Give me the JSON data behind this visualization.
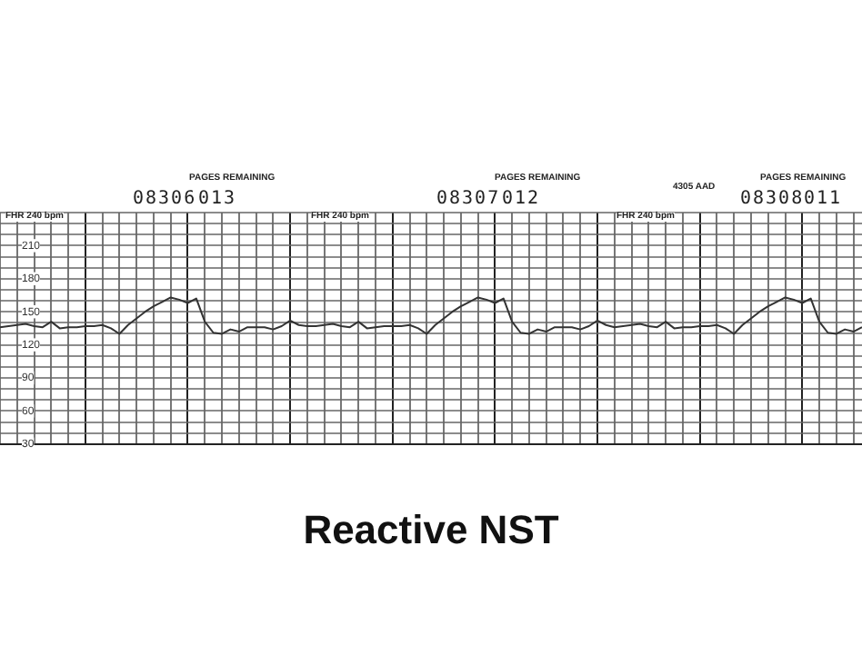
{
  "chart_data": {
    "type": "line",
    "title": "Reactive NST",
    "annotations": [
      "PAGES REMAINING",
      "08306",
      "013",
      "FHR 240 bpm",
      "FHR 240 bpm",
      "PAGES REMAINING",
      "08307",
      "012",
      "4305 AAD",
      "PAGES REMAINING",
      "08308",
      "011",
      "FHR 240 bpm"
    ],
    "categories": [
      null,
      null,
      null,
      null,
      null,
      null,
      null,
      null,
      null,
      null,
      null,
      null,
      null,
      null,
      null,
      null,
      null,
      null,
      null,
      null,
      null,
      null,
      null,
      null,
      null,
      null,
      null,
      null,
      null,
      null,
      null,
      null,
      null,
      null,
      null,
      null,
      null,
      null,
      null,
      null,
      null,
      null,
      null,
      null,
      null,
      null,
      null,
      null,
      null,
      null,
      null,
      null,
      null,
      null,
      null,
      null,
      null,
      null,
      null,
      null,
      null,
      null,
      null,
      null,
      null,
      null,
      null,
      null,
      null,
      null,
      null,
      null,
      null,
      null,
      null,
      null,
      null,
      null,
      null,
      null,
      null,
      null,
      null,
      null,
      null,
      null,
      null,
      null,
      null,
      null,
      null,
      null,
      null,
      null,
      null,
      null,
      null,
      null,
      null,
      null,
      null,
      null
    ],
    "series": [
      {
        "color": "#333333",
        "values": [
          136,
          137,
          138,
          139,
          137,
          136,
          141,
          135,
          136,
          136,
          137,
          137,
          138,
          135,
          130,
          138,
          144,
          150,
          155,
          159,
          163,
          161,
          158,
          162,
          141,
          131,
          130,
          134,
          132,
          136,
          136,
          136,
          134,
          137,
          142,
          138,
          137,
          137,
          138,
          139,
          137,
          136,
          141,
          135,
          136,
          137,
          137,
          137,
          138,
          135,
          130,
          138,
          144,
          150,
          155,
          159,
          163,
          161,
          158,
          162,
          141,
          131,
          130,
          134,
          132,
          136,
          136,
          136,
          134,
          137,
          142,
          138,
          136,
          137,
          138,
          139,
          137,
          136,
          141,
          135,
          136,
          136,
          137,
          137,
          138,
          135,
          130,
          138,
          144,
          150,
          155,
          159,
          163,
          161,
          158,
          162,
          141,
          131,
          130,
          134,
          132,
          136
        ]
      }
    ],
    "ylim": [
      30,
      240
    ],
    "yticks": [
      30,
      {
        "value": 40,
        "label": null
      },
      {
        "value": 50,
        "label": null
      },
      60,
      {
        "value": 70,
        "label": null
      },
      {
        "value": 80,
        "label": null
      },
      90,
      {
        "value": 100,
        "label": null
      },
      {
        "value": 110,
        "label": null
      },
      120,
      {
        "value": 130,
        "label": null
      },
      {
        "value": 140,
        "label": null
      },
      150,
      {
        "value": 160,
        "label": null
      },
      {
        "value": 170,
        "label": null
      },
      180,
      {
        "value": 190,
        "label": null
      },
      {
        "value": 200,
        "label": null
      },
      210,
      {
        "value": 220,
        "label": null
      },
      {
        "value": 230,
        "label": null
      },
      {
        "value": 240,
        "label": null
      }
    ],
    "grid": true,
    "legend": false,
    "marker": "none",
    "line_style": "solid"
  }
}
